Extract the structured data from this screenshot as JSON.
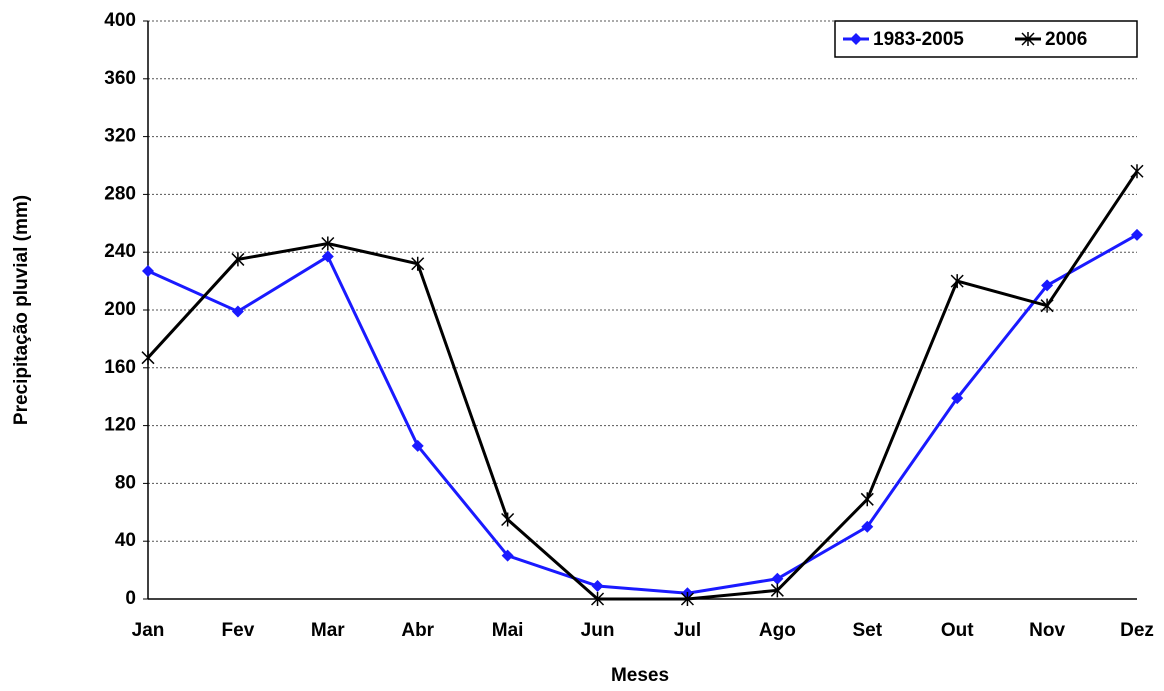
{
  "chart_data": {
    "type": "line",
    "x_label": "Meses",
    "y_label": "Precipitação pluvial (mm)",
    "categories": [
      "Jan",
      "Fev",
      "Mar",
      "Abr",
      "Mai",
      "Jun",
      "Jul",
      "Ago",
      "Set",
      "Out",
      "Nov",
      "Dez"
    ],
    "series": [
      {
        "name": "1983-2005",
        "color": "#1a1aff",
        "marker": "diamond",
        "values": [
          227,
          199,
          237,
          106,
          30,
          9,
          4,
          14,
          50,
          139,
          217,
          252
        ]
      },
      {
        "name": "2006",
        "color": "#000000",
        "marker": "star",
        "values": [
          167,
          235,
          246,
          232,
          55,
          0,
          0,
          6,
          69,
          220,
          203,
          296
        ]
      }
    ],
    "ylim": [
      0,
      400
    ],
    "yticks": [
      0,
      40,
      80,
      120,
      160,
      200,
      240,
      280,
      320,
      360,
      400
    ],
    "grid": true,
    "legend": "upper right"
  }
}
